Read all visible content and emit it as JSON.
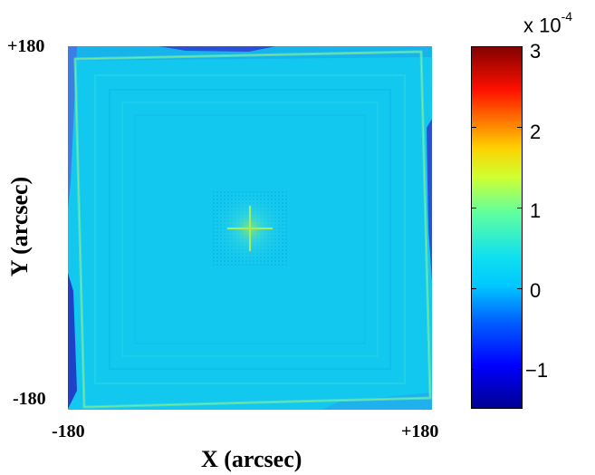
{
  "chart_data": {
    "type": "heatmap",
    "xlabel": "X (arcsec)",
    "ylabel": "Y (arcsec)",
    "x_ticks": [
      "-180",
      "+180"
    ],
    "y_ticks": [
      "+180",
      "-180"
    ],
    "xlim": [
      -180,
      180
    ],
    "ylim": [
      -180,
      180
    ],
    "colorbar": {
      "multiplier_base": "x 10",
      "multiplier_exponent": "-4",
      "ticks": [
        {
          "value": 3,
          "label": "3"
        },
        {
          "value": 2,
          "label": "2"
        },
        {
          "value": 1,
          "label": "1"
        },
        {
          "value": 0,
          "label": "0"
        },
        {
          "value": -1,
          "label": "−1"
        }
      ],
      "range": [
        -1.5,
        3
      ],
      "colormap": "jet"
    },
    "background_level": 0.1,
    "center_feature_level": 0.8
  }
}
